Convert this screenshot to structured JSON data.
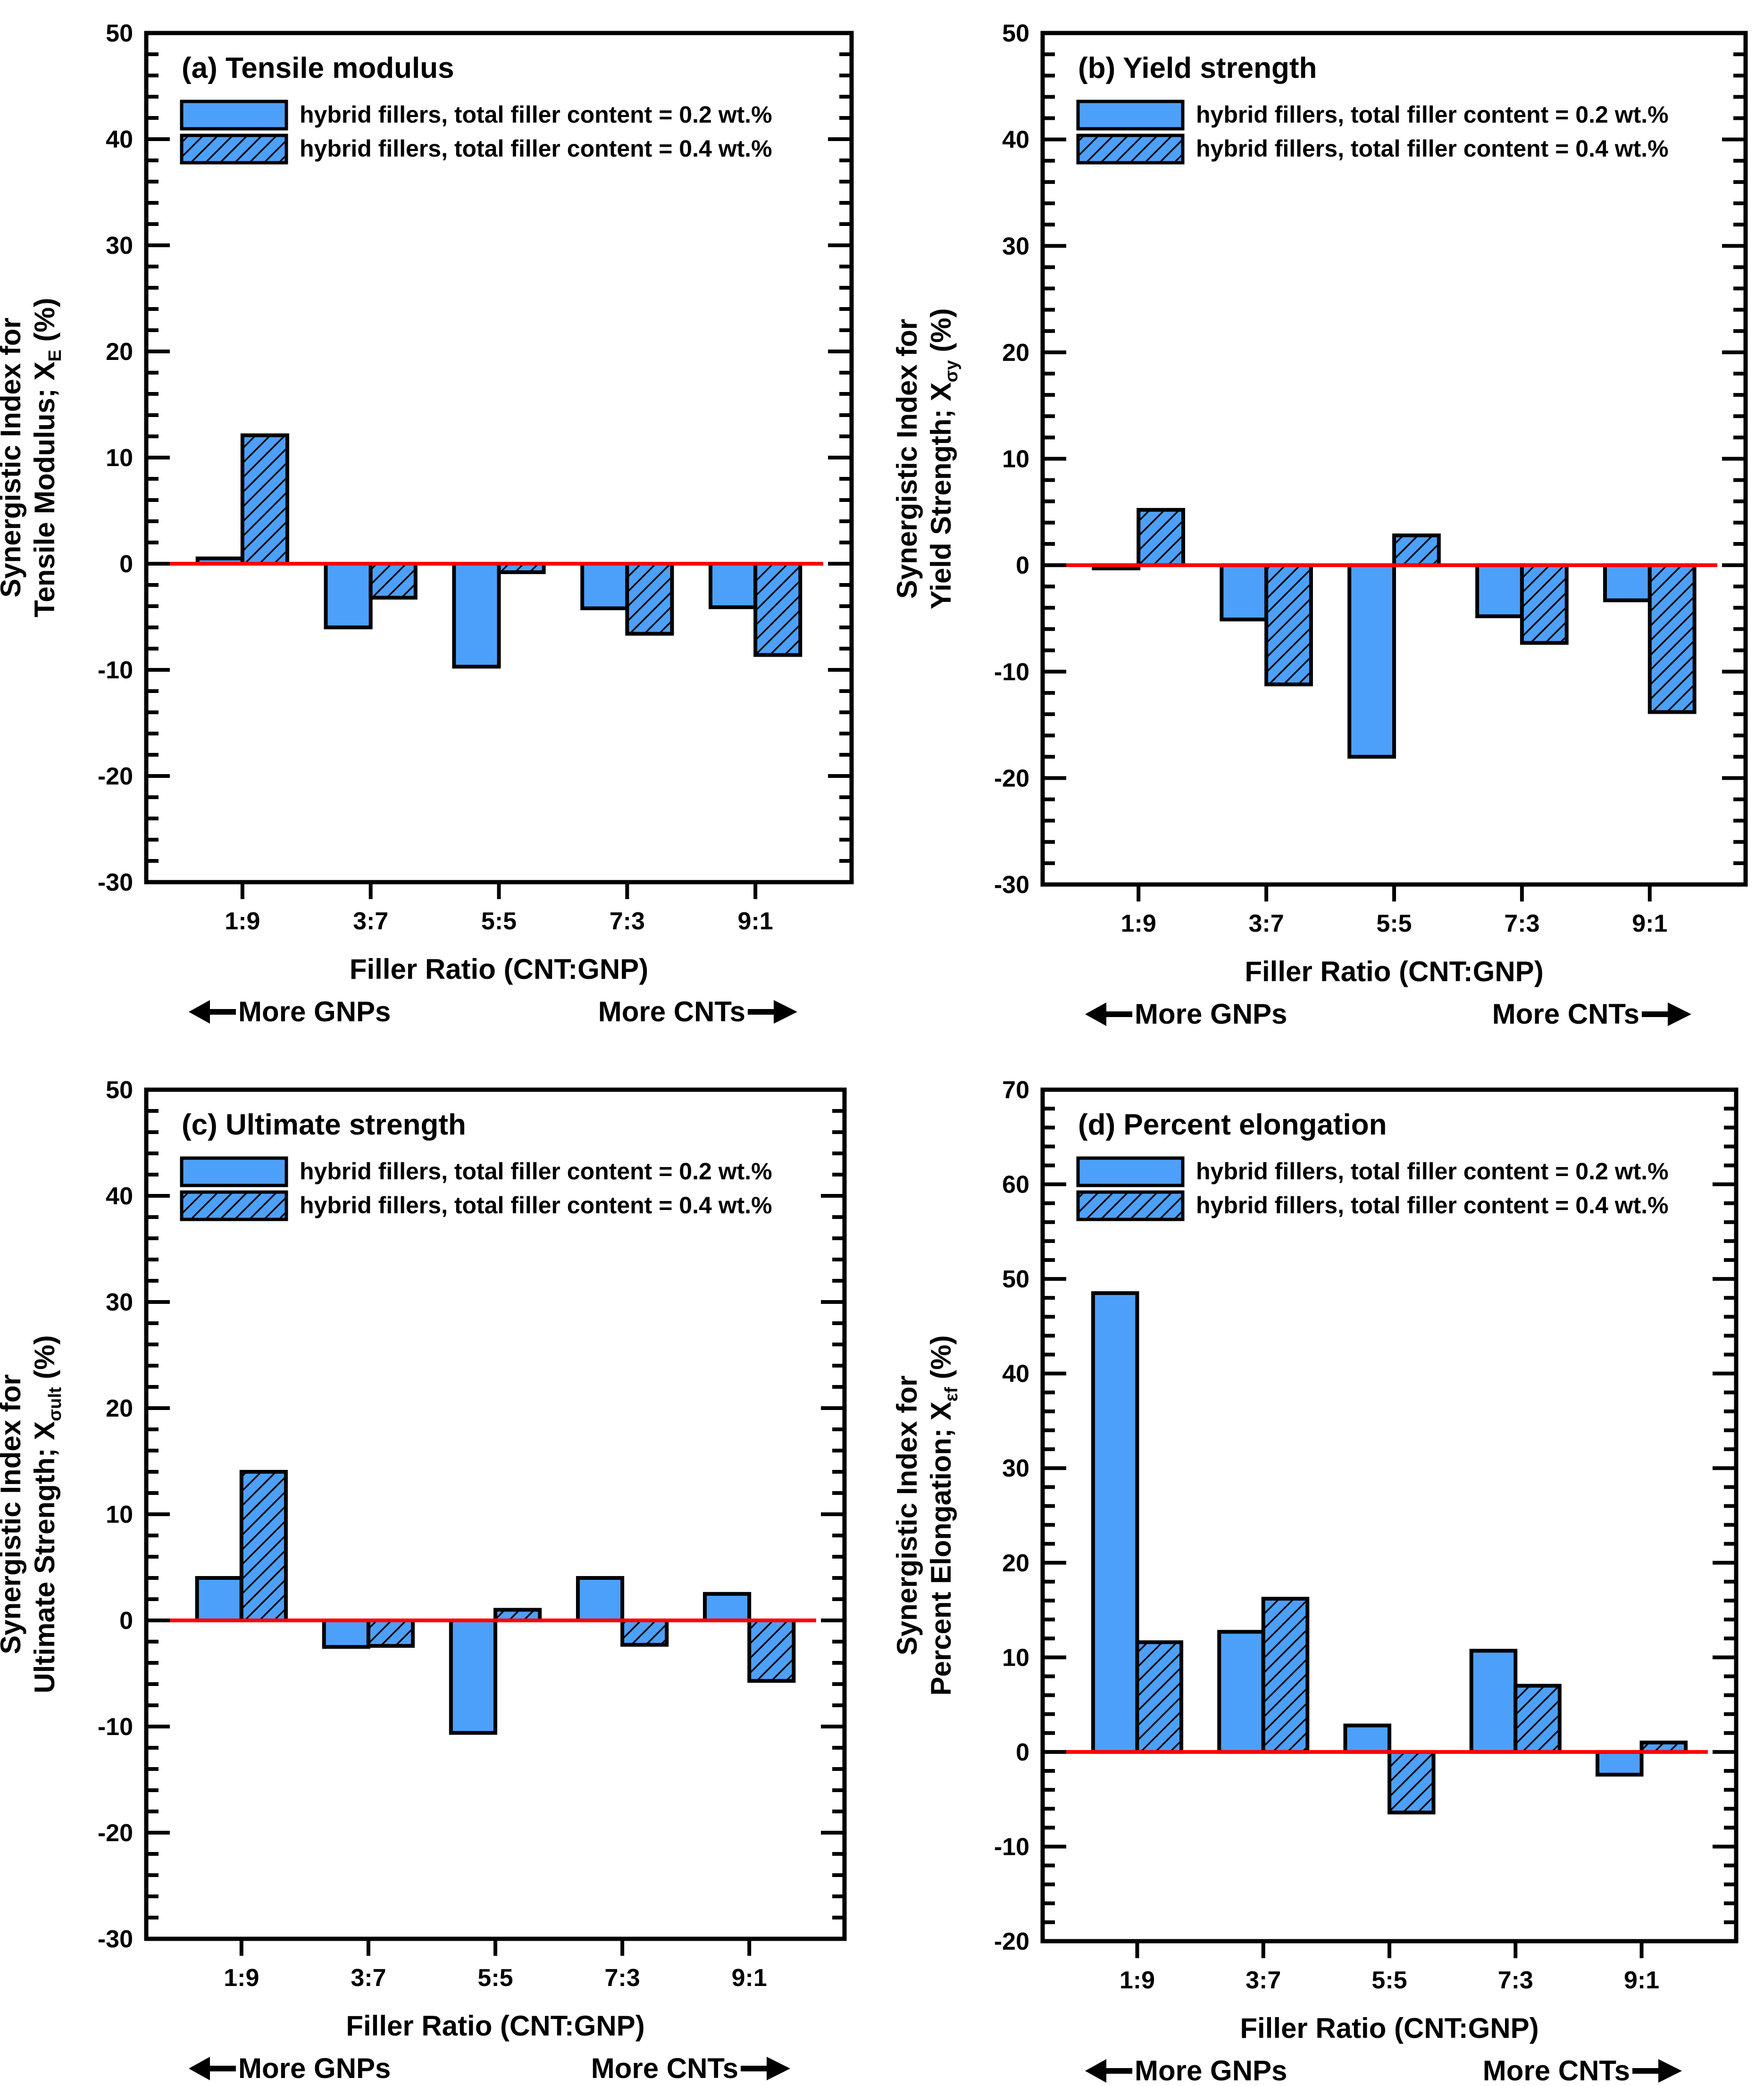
{
  "colors": {
    "bar_fill": "#4da0fa",
    "bar_stroke": "#000000",
    "zero_line": "#ff0000",
    "hatch": "#000000"
  },
  "chart_data": [
    {
      "type": "bar",
      "panel": "a",
      "title": "(a) Tensile modulus",
      "ylabel_line1": "Synergistic Index for",
      "ylabel_line2": "Tensile Modulus; X",
      "ylabel_sub": "E",
      "ylabel_unit": " (%)",
      "xlabel": "Filler Ratio (CNT:GNP)",
      "left_note": "More GNPs",
      "right_note": "More CNTs",
      "categories": [
        "1:9",
        "3:7",
        "5:5",
        "7:3",
        "9:1"
      ],
      "ylim": [
        -30,
        50
      ],
      "yticks": [
        -30,
        -20,
        -10,
        0,
        10,
        20,
        30,
        40,
        50
      ],
      "ytick_labels": [
        "-30",
        "-20",
        "-10",
        "0",
        "10",
        "20",
        "30",
        "40",
        "50"
      ],
      "series": [
        {
          "name": "hybrid fillers, total filler content = 0.2 wt.%",
          "pattern": "solid",
          "values": [
            0.5,
            -6.0,
            -9.7,
            -4.2,
            -4.1
          ]
        },
        {
          "name": "hybrid fillers, total filler content = 0.4 wt.%",
          "pattern": "hatched",
          "values": [
            12.1,
            -3.2,
            -0.8,
            -6.6,
            -8.6
          ]
        }
      ]
    },
    {
      "type": "bar",
      "panel": "b",
      "title": "(b) Yield strength",
      "ylabel_line1": "Synergistic Index for",
      "ylabel_line2": "Yield Strength; X",
      "ylabel_sub": "σy",
      "ylabel_unit": " (%)",
      "xlabel": "Filler Ratio (CNT:GNP)",
      "left_note": "More GNPs",
      "right_note": "More CNTs",
      "categories": [
        "1:9",
        "3:7",
        "5:5",
        "7:3",
        "9:1"
      ],
      "ylim": [
        -30,
        50
      ],
      "yticks": [
        -30,
        -20,
        -10,
        0,
        10,
        20,
        30,
        40,
        50
      ],
      "ytick_labels": [
        "-30",
        "-20",
        "-10",
        "0",
        "10",
        "20",
        "30",
        "40",
        "50"
      ],
      "series": [
        {
          "name": "hybrid fillers, total filler content = 0.2 wt.%",
          "pattern": "solid",
          "values": [
            -0.3,
            -5.1,
            -18.0,
            -4.8,
            -3.3
          ]
        },
        {
          "name": "hybrid fillers, total filler content = 0.4 wt.%",
          "pattern": "hatched",
          "values": [
            5.2,
            -11.2,
            2.8,
            -7.3,
            -13.8
          ]
        }
      ]
    },
    {
      "type": "bar",
      "panel": "c",
      "title": "(c) Ultimate strength",
      "ylabel_line1": "Synergistic Index for",
      "ylabel_line2": "Ultimate Strength; X",
      "ylabel_sub": "σult",
      "ylabel_unit": " (%)",
      "xlabel": "Filler Ratio (CNT:GNP)",
      "left_note": "More GNPs",
      "right_note": "More CNTs",
      "categories": [
        "1:9",
        "3:7",
        "5:5",
        "7:3",
        "9:1"
      ],
      "ylim": [
        -30,
        50
      ],
      "yticks": [
        -30,
        -20,
        -10,
        0,
        10,
        20,
        30,
        40,
        50
      ],
      "ytick_labels": [
        "-30",
        "-20",
        "-10",
        "0",
        "10",
        "20",
        "30",
        "40",
        "50"
      ],
      "series": [
        {
          "name": "hybrid fillers, total filler content = 0.2 wt.%",
          "pattern": "solid",
          "values": [
            4.0,
            -2.5,
            -10.6,
            4.0,
            2.5
          ]
        },
        {
          "name": "hybrid fillers, total filler content = 0.4 wt.%",
          "pattern": "hatched",
          "values": [
            14.0,
            -2.4,
            1.0,
            -2.3,
            -5.7
          ]
        }
      ]
    },
    {
      "type": "bar",
      "panel": "d",
      "title": "(d) Percent elongation",
      "ylabel_line1": "Synergistic Index for",
      "ylabel_line2": "Percent Elongation; X",
      "ylabel_sub": "εf",
      "ylabel_unit": " (%)",
      "xlabel": "Filler Ratio (CNT:GNP)",
      "left_note": "More GNPs",
      "right_note": "More CNTs",
      "categories": [
        "1:9",
        "3:7",
        "5:5",
        "7:3",
        "9:1"
      ],
      "ylim": [
        -20,
        70
      ],
      "yticks": [
        -20,
        -10,
        0,
        10,
        20,
        30,
        40,
        50,
        60,
        70
      ],
      "ytick_labels": [
        "-20",
        "-10",
        "0",
        "10",
        "20",
        "30",
        "40",
        "50",
        "60",
        "70"
      ],
      "series": [
        {
          "name": "hybrid fillers, total filler content = 0.2 wt.%",
          "pattern": "solid",
          "values": [
            48.5,
            12.7,
            2.8,
            10.7,
            -2.4
          ]
        },
        {
          "name": "hybrid fillers, total filler content = 0.4 wt.%",
          "pattern": "hatched",
          "values": [
            11.6,
            16.2,
            -6.4,
            7.0,
            1.0
          ]
        }
      ]
    }
  ]
}
